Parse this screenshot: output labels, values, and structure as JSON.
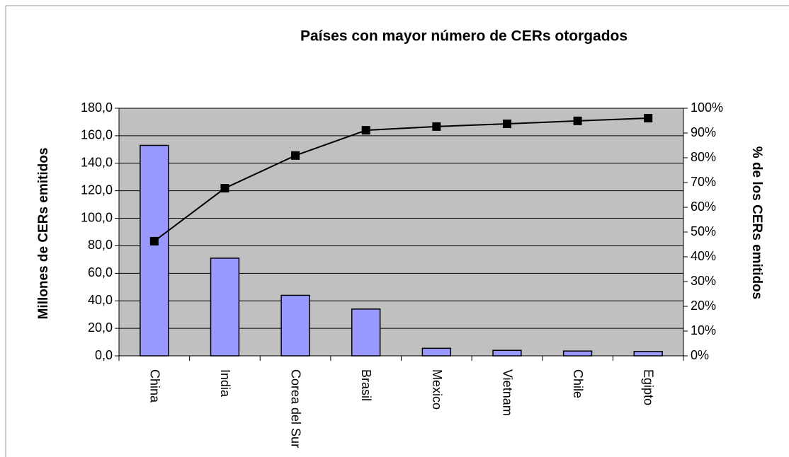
{
  "chart_data": {
    "type": "bar",
    "title": "Países con mayor número de CERs otorgados",
    "y_label": "Millones de CERs emitidos",
    "y2_label": "% de los CERs emitidos",
    "categories": [
      "China",
      "India",
      "Corea del Sur",
      "Brasil",
      "Mexico",
      "Vietnam",
      "Chile",
      "Egipto"
    ],
    "series": [
      {
        "type": "bar",
        "color": "#9999ff",
        "values": [
          153,
          71,
          44,
          34,
          5.5,
          4,
          3.5,
          3.2
        ]
      },
      {
        "type": "line",
        "axis": "y2",
        "color": "#000000",
        "values": [
          46.3,
          67.7,
          80.9,
          91.1,
          92.6,
          93.7,
          94.9,
          96
        ]
      }
    ],
    "ylim": [
      0,
      180
    ],
    "yticks": [
      {
        "value": 0,
        "label": "0,0"
      },
      {
        "value": 20,
        "label": "20,0"
      },
      {
        "value": 40,
        "label": "40,0"
      },
      {
        "value": 60,
        "label": "60,0"
      },
      {
        "value": 80,
        "label": "80,0"
      },
      {
        "value": 100,
        "label": "100,0"
      },
      {
        "value": 120,
        "label": "120,0"
      },
      {
        "value": 140,
        "label": "140,0"
      },
      {
        "value": 160,
        "label": "160,0"
      },
      {
        "value": 180,
        "label": "180,0"
      }
    ],
    "y2lim": [
      0,
      100
    ],
    "y2ticks": [
      {
        "value": 0,
        "label": "0%"
      },
      {
        "value": 10,
        "label": "10%"
      },
      {
        "value": 20,
        "label": "20%"
      },
      {
        "value": 30,
        "label": "30%"
      },
      {
        "value": 40,
        "label": "40%"
      },
      {
        "value": 50,
        "label": "50%"
      },
      {
        "value": 60,
        "label": "60%"
      },
      {
        "value": 70,
        "label": "70%"
      },
      {
        "value": 80,
        "label": "80%"
      },
      {
        "value": 90,
        "label": "90%"
      },
      {
        "value": 100,
        "label": "100%"
      }
    ],
    "grid": true,
    "plot_background": "#c0c0c0"
  }
}
